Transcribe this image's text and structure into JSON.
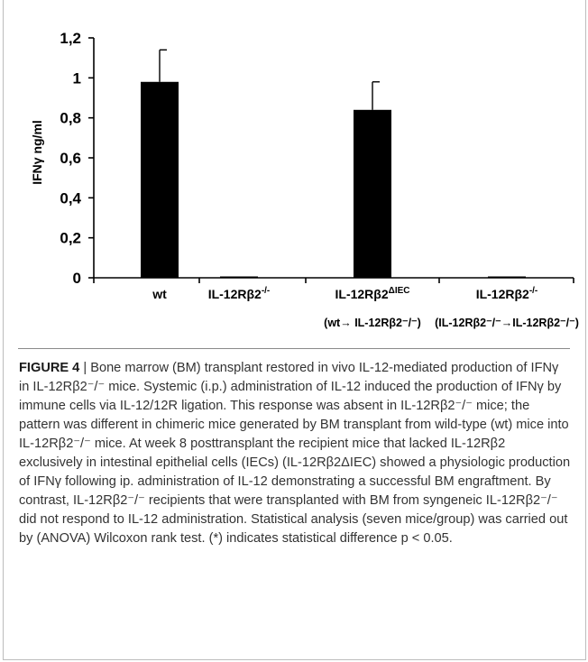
{
  "chart_data": {
    "type": "bar",
    "categories": [
      {
        "line1": "wt",
        "sup": "",
        "line2": ""
      },
      {
        "line1": "IL-12Rβ2",
        "sup": "-/-",
        "line2": ""
      },
      {
        "line1": "IL-12Rβ2",
        "sup": "ΔIEC",
        "line2": "(wt→ IL-12Rβ2⁻/⁻)"
      },
      {
        "line1": "IL-12Rβ2",
        "sup": "-/-",
        "line2": "(IL-12Rβ2⁻/⁻→IL-12Rβ2⁻/⁻)"
      }
    ],
    "values": [
      0.98,
      0.005,
      0.84,
      0.005
    ],
    "errors": [
      0.16,
      0.0,
      0.14,
      0.0
    ],
    "ylabel": "IFNγ ng/ml",
    "ylim": [
      0,
      1.2
    ],
    "yticks": [
      "0",
      "0,2",
      "0,4",
      "0,6",
      "0,8",
      "1",
      "1,2"
    ],
    "bar_color": "#000000"
  },
  "caption": {
    "label": "FIGURE 4",
    "separator": " | ",
    "text": "Bone marrow (BM) transplant restored in vivo IL-12-mediated production of IFNγ in IL-12Rβ2⁻/⁻ mice. Systemic (i.p.) administration of IL-12 induced the production of IFNγ by immune cells via IL-12/12R ligation. This response was absent in IL-12Rβ2⁻/⁻ mice; the pattern was different in chimeric mice generated by BM transplant from wild-type (wt) mice into IL-12Rβ2⁻/⁻ mice. At week 8 posttransplant the recipient mice that lacked IL-12Rβ2 exclusively in intestinal epithelial cells (IECs) (IL-12Rβ2ΔIEC) showed a physiologic production of IFNγ following ip. administration of IL-12 demonstrating a successful BM engraftment. By contrast, IL-12Rβ2⁻/⁻ recipients that were transplanted with BM from syngeneic IL-12Rβ2⁻/⁻ did not respond to IL-12 administration. Statistical analysis (seven mice/group) was carried out by (ANOVA) Wilcoxon rank test. (*) indicates statistical difference p < 0.05."
  }
}
